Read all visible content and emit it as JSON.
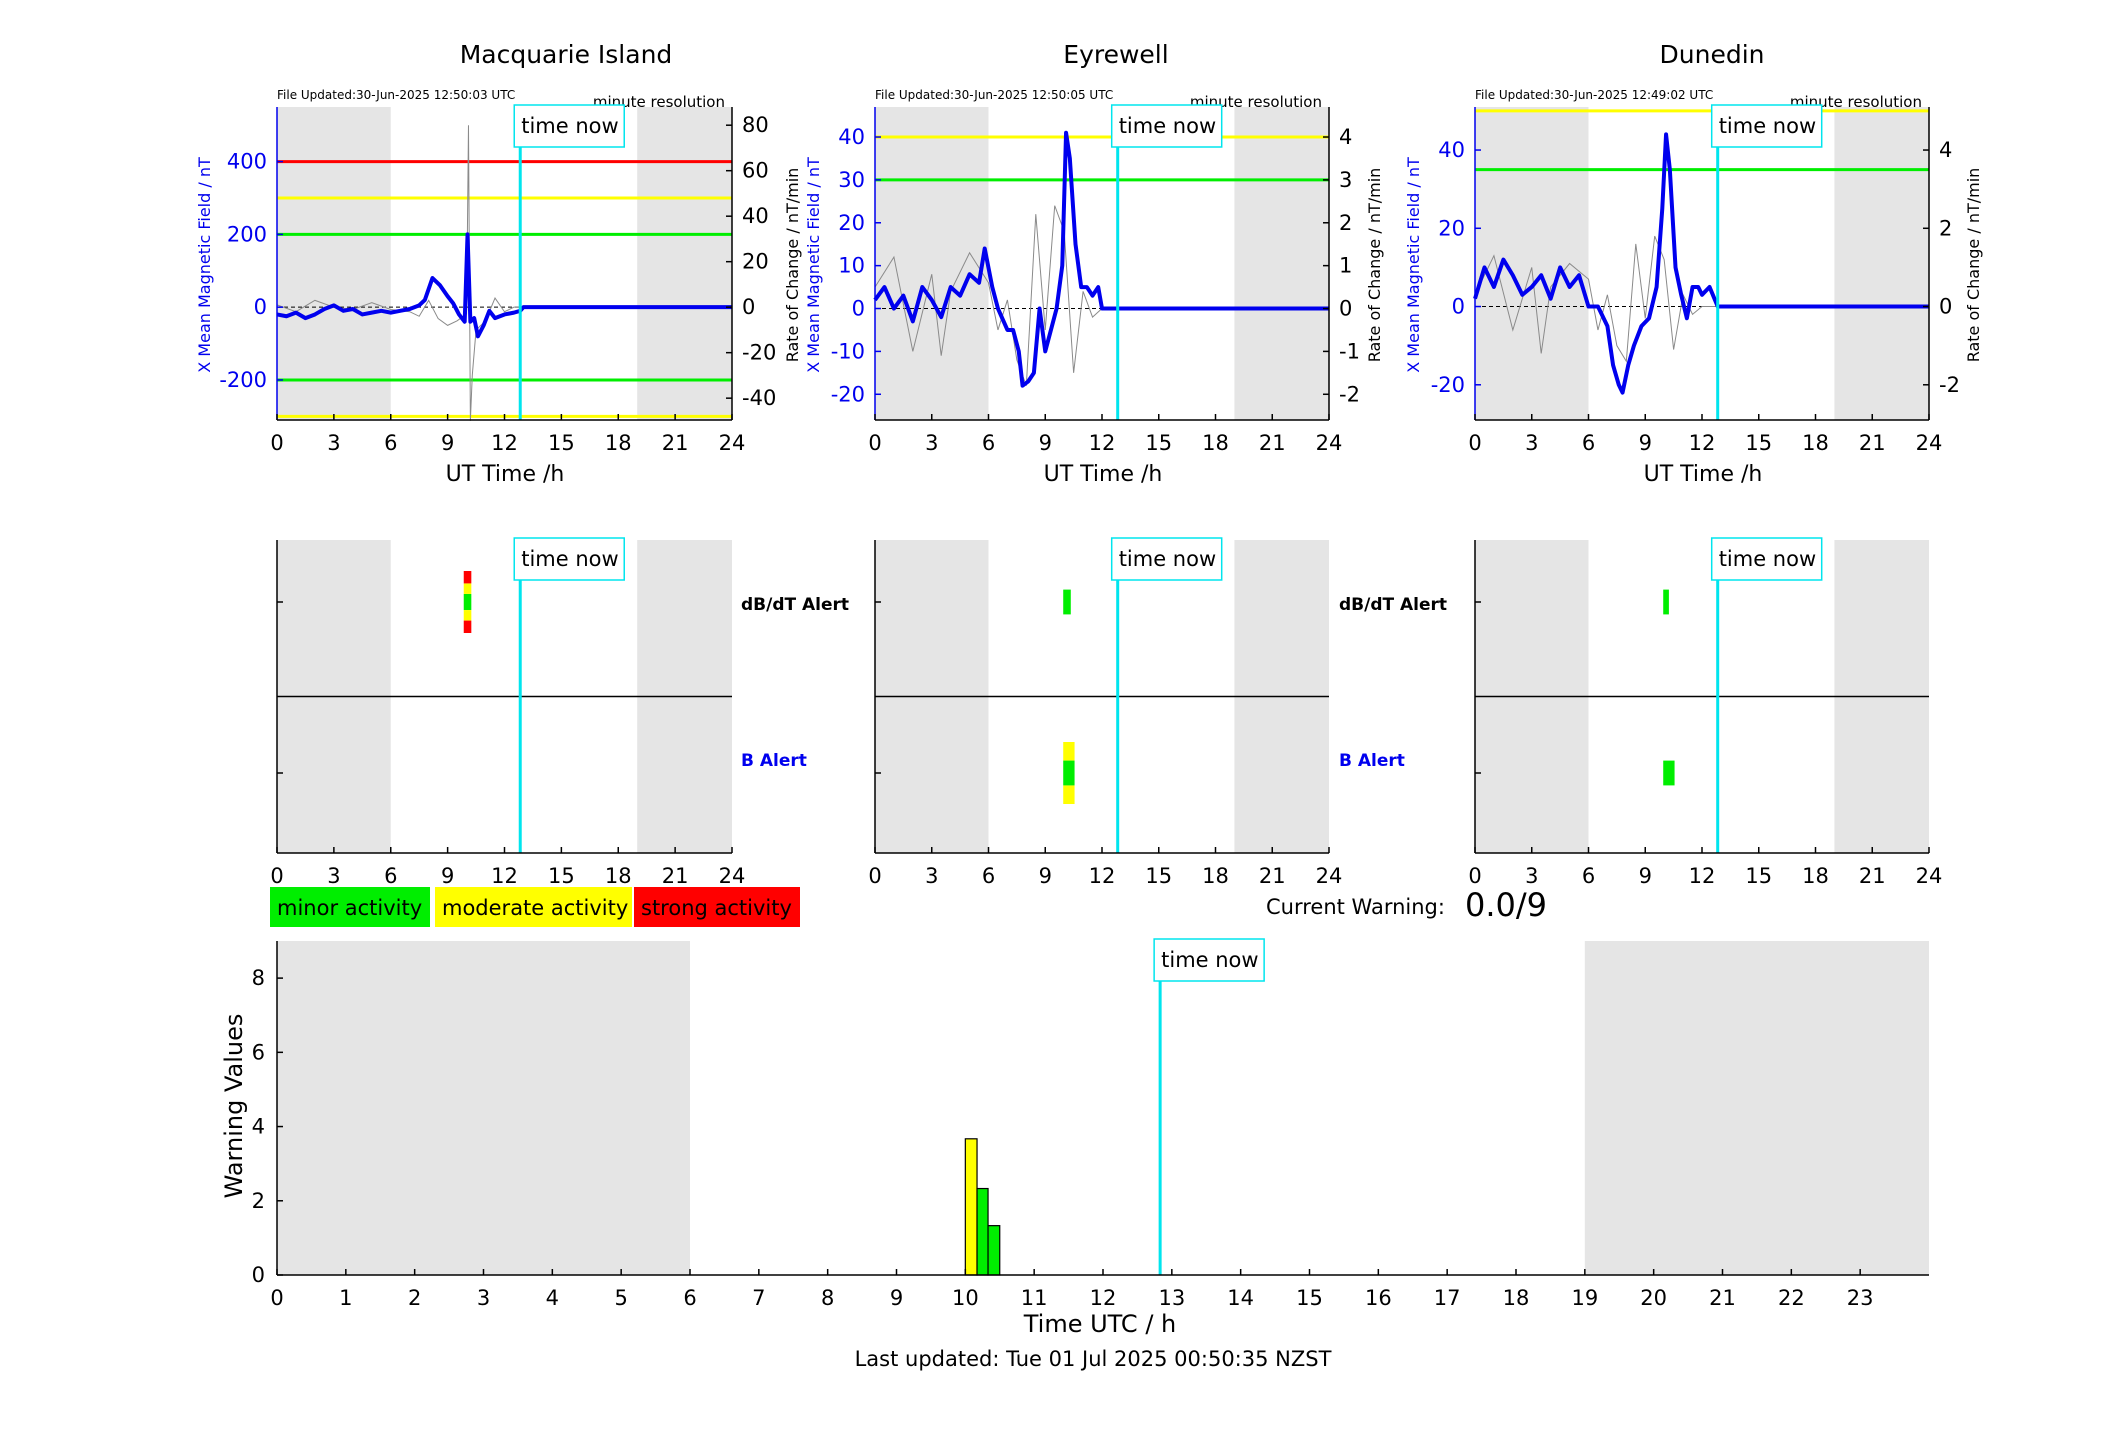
{
  "colors": {
    "blue": "#0000ee",
    "cyan": "#00e5ee",
    "red": "#ff0000",
    "yellow": "#ffff00",
    "green": "#00ee00",
    "night": "#e5e5e5",
    "trace_gray": "#8a8a8a"
  },
  "labels": {
    "time_now": "time now",
    "minute_res": "minute resolution",
    "ut_xlabel": "UT Time /h",
    "left_ylabel": "X Mean Magnetic Field / nT",
    "right_ylabel": "Rate of Change / nT/min",
    "dbdt_alert": "dB/dT Alert",
    "b_alert": "B Alert",
    "current_warning_label": "Current Warning:",
    "current_warning_value": "0.0/9",
    "warning_ylabel": "Warning Values",
    "warning_xlabel": "Time UTC / h",
    "last_updated": "Last updated: Tue 01 Jul 2025 00:50:35 NZST"
  },
  "legend": [
    {
      "label": "minor activity",
      "color": "#00ee00"
    },
    {
      "label": "moderate activity",
      "color": "#ffff00"
    },
    {
      "label": "strong activity",
      "color": "#ff0000"
    }
  ],
  "chart_data": [
    {
      "type": "line",
      "title": "Macquarie Island",
      "file_updated": "File Updated:30-Jun-2025 12:50:03 UTC",
      "x_ticks": [
        "0",
        "3",
        "6",
        "9",
        "12",
        "15",
        "18",
        "21",
        "24"
      ],
      "xlim": [
        0,
        24
      ],
      "ylim_left": [
        -310,
        550
      ],
      "yticks_left": [
        -200,
        0,
        200,
        400
      ],
      "ytick_labels_left": [
        "-200",
        "0",
        "200",
        "400"
      ],
      "ylim_right": [
        -49.6,
        88
      ],
      "yticks_right": [
        -40,
        -20,
        0,
        20,
        40,
        60,
        80
      ],
      "ytick_labels_right": [
        "-40",
        "-20",
        "0",
        "20",
        "40",
        "60",
        "80"
      ],
      "night": [
        [
          0,
          6
        ],
        [
          19,
          24
        ]
      ],
      "now_hour": 12.83,
      "thresholds": [
        {
          "value": 400,
          "color": "#ff0000"
        },
        {
          "value": 300,
          "color": "#ffff00"
        },
        {
          "value": 200,
          "color": "#00ee00"
        },
        {
          "value": -200,
          "color": "#00ee00"
        },
        {
          "value": -300,
          "color": "#ffff00"
        }
      ],
      "series": [
        {
          "kind": "field",
          "x": [
            0,
            0.5,
            1,
            1.5,
            2,
            2.5,
            3,
            3.5,
            4,
            4.5,
            5,
            5.5,
            6,
            6.5,
            7,
            7.5,
            7.8,
            8.2,
            8.6,
            9,
            9.3,
            9.6,
            9.9,
            10.05,
            10.2,
            10.4,
            10.6,
            10.9,
            11.2,
            11.5,
            12,
            12.5,
            12.83,
            13,
            24
          ],
          "y": [
            -20,
            -25,
            -15,
            -30,
            -20,
            -5,
            5,
            -10,
            -5,
            -20,
            -15,
            -10,
            -15,
            -10,
            -5,
            5,
            20,
            80,
            60,
            30,
            10,
            -20,
            -40,
            200,
            -40,
            -30,
            -80,
            -50,
            -10,
            -30,
            -20,
            -15,
            -10,
            0,
            0
          ]
        },
        {
          "kind": "rate",
          "x": [
            0,
            1,
            2,
            3,
            4,
            5,
            6,
            7,
            7.5,
            8,
            8.5,
            9,
            9.5,
            10,
            10.1,
            10.2,
            10.3,
            10.5,
            11,
            11.5,
            12,
            12.5,
            12.83
          ],
          "y": [
            1,
            -2,
            3,
            0,
            -1,
            2,
            -1,
            -2,
            -4,
            3,
            -5,
            -8,
            -6,
            -3,
            80,
            -50,
            -30,
            -10,
            -6,
            4,
            -2,
            0,
            0
          ]
        }
      ],
      "alerts": {
        "dbdt": [
          {
            "h0": 9.85,
            "h1": 10.25,
            "v0": 0.37,
            "v1": 0.63,
            "color": "#00ee00"
          },
          {
            "h0": 9.85,
            "h1": 10.25,
            "v0": 0.63,
            "v1": 0.8,
            "color": "#ffff00"
          },
          {
            "h0": 9.85,
            "h1": 10.25,
            "v0": 0.2,
            "v1": 0.37,
            "color": "#ffff00"
          },
          {
            "h0": 9.85,
            "h1": 10.25,
            "v0": 0.8,
            "v1": 1.0,
            "color": "#ff0000"
          },
          {
            "h0": 9.85,
            "h1": 10.25,
            "v0": 0.0,
            "v1": 0.2,
            "color": "#ff0000"
          }
        ],
        "b": []
      }
    },
    {
      "type": "line",
      "title": "Eyrewell",
      "file_updated": "File Updated:30-Jun-2025 12:50:05 UTC",
      "x_ticks": [
        "0",
        "3",
        "6",
        "9",
        "12",
        "15",
        "18",
        "21",
        "24"
      ],
      "xlim": [
        0,
        24
      ],
      "ylim_left": [
        -26,
        47
      ],
      "yticks_left": [
        -20,
        -10,
        0,
        10,
        20,
        30,
        40
      ],
      "ytick_labels_left": [
        "-20",
        "-10",
        "0",
        "10",
        "20",
        "30",
        "40"
      ],
      "ylim_right": [
        -2.6,
        4.7
      ],
      "yticks_right": [
        -2,
        -1,
        0,
        1,
        2,
        3,
        4
      ],
      "ytick_labels_right": [
        "-2",
        "-1",
        "0",
        "1",
        "2",
        "3",
        "4"
      ],
      "night": [
        [
          0,
          6
        ],
        [
          19,
          24
        ]
      ],
      "now_hour": 12.83,
      "thresholds": [
        {
          "value": 40,
          "color": "#ffff00"
        },
        {
          "value": 30,
          "color": "#00ee00"
        }
      ],
      "series": [
        {
          "kind": "field",
          "x": [
            0,
            0.5,
            1,
            1.5,
            2,
            2.5,
            3,
            3.5,
            4,
            4.5,
            5,
            5.5,
            5.8,
            6.2,
            6.5,
            7,
            7.3,
            7.6,
            7.8,
            8.1,
            8.4,
            8.7,
            9,
            9.3,
            9.6,
            9.9,
            10.1,
            10.3,
            10.6,
            10.9,
            11.2,
            11.5,
            11.8,
            12,
            12.3,
            12.83,
            13,
            24
          ],
          "y": [
            2,
            5,
            0,
            3,
            -3,
            5,
            2,
            -2,
            5,
            3,
            8,
            6,
            14,
            5,
            0,
            -5,
            -5,
            -10,
            -18,
            -17,
            -15,
            0,
            -10,
            -5,
            0,
            10,
            41,
            35,
            15,
            5,
            5,
            3,
            5,
            0,
            0,
            0,
            0,
            0
          ]
        },
        {
          "kind": "rate",
          "x": [
            0,
            1,
            2,
            3,
            3.5,
            4,
            5,
            6,
            6.5,
            7,
            7.5,
            8,
            8.5,
            9,
            9.5,
            10,
            10.5,
            11,
            11.5,
            12,
            12.83
          ],
          "y": [
            0.5,
            1.2,
            -1,
            0.8,
            -1.1,
            0.4,
            1.3,
            0.6,
            -0.5,
            0.2,
            -1.2,
            -1.8,
            2.2,
            -0.5,
            2.4,
            1.8,
            -1.5,
            0.4,
            -0.2,
            0,
            0
          ]
        }
      ],
      "alerts": {
        "dbdt": [
          {
            "h0": 9.95,
            "h1": 10.35,
            "v0": 0.3,
            "v1": 0.7,
            "color": "#00ee00"
          }
        ],
        "b": [
          {
            "h0": 9.95,
            "h1": 10.55,
            "v0": 0.7,
            "v1": 1.0,
            "color": "#ffff00"
          },
          {
            "h0": 9.95,
            "h1": 10.55,
            "v0": 0.0,
            "v1": 0.3,
            "color": "#ffff00"
          },
          {
            "h0": 9.95,
            "h1": 10.55,
            "v0": 0.3,
            "v1": 0.7,
            "color": "#00ee00"
          }
        ]
      }
    },
    {
      "type": "line",
      "title": "Dunedin",
      "file_updated": "File Updated:30-Jun-2025 12:49:02 UTC",
      "x_ticks": [
        "0",
        "3",
        "6",
        "9",
        "12",
        "15",
        "18",
        "21",
        "24"
      ],
      "xlim": [
        0,
        24
      ],
      "ylim_left": [
        -29,
        51
      ],
      "yticks_left": [
        -20,
        0,
        20,
        40
      ],
      "ytick_labels_left": [
        "-20",
        "0",
        "20",
        "40"
      ],
      "ylim_right": [
        -2.9,
        5.1
      ],
      "yticks_right": [
        -2,
        0,
        2,
        4
      ],
      "ytick_labels_right": [
        "-2",
        "0",
        "2",
        "4"
      ],
      "night": [
        [
          0,
          6
        ],
        [
          19,
          24
        ]
      ],
      "now_hour": 12.83,
      "thresholds": [
        {
          "value": 50,
          "color": "#ffff00"
        },
        {
          "value": 35,
          "color": "#00ee00"
        }
      ],
      "series": [
        {
          "kind": "field",
          "x": [
            0,
            0.5,
            1,
            1.5,
            2,
            2.5,
            3,
            3.5,
            4,
            4.5,
            5,
            5.5,
            6,
            6.5,
            7,
            7.3,
            7.6,
            7.8,
            8.1,
            8.4,
            8.8,
            9.2,
            9.6,
            9.9,
            10.1,
            10.3,
            10.6,
            10.9,
            11.2,
            11.5,
            11.8,
            12,
            12.4,
            12.83,
            13,
            24
          ],
          "y": [
            2,
            10,
            5,
            12,
            8,
            3,
            5,
            8,
            2,
            10,
            5,
            8,
            0,
            0,
            -5,
            -15,
            -20,
            -22,
            -15,
            -10,
            -5,
            -3,
            5,
            25,
            44,
            35,
            10,
            3,
            -3,
            5,
            5,
            3,
            5,
            0,
            0,
            0
          ]
        },
        {
          "kind": "rate",
          "x": [
            0,
            1,
            2,
            3,
            3.5,
            4,
            5,
            6,
            6.5,
            7,
            7.5,
            8,
            8.5,
            9,
            9.5,
            10,
            10.5,
            11,
            11.5,
            12,
            12.83
          ],
          "y": [
            0.3,
            1.3,
            -0.6,
            1.0,
            -1.2,
            0.5,
            1.1,
            0.7,
            -0.6,
            0.3,
            -1.0,
            -1.4,
            1.6,
            -0.3,
            1.8,
            1.2,
            -1.1,
            0.3,
            -0.2,
            0,
            0
          ]
        }
      ],
      "alerts": {
        "dbdt": [
          {
            "h0": 9.95,
            "h1": 10.25,
            "v0": 0.3,
            "v1": 0.7,
            "color": "#00ee00"
          }
        ],
        "b": [
          {
            "h0": 9.95,
            "h1": 10.55,
            "v0": 0.3,
            "v1": 0.7,
            "color": "#00ee00"
          }
        ]
      }
    },
    {
      "type": "bar",
      "title": "",
      "xlabel": "Time UTC / h",
      "ylabel": "Warning Values",
      "xlim": [
        0,
        24
      ],
      "x_ticks": [
        "0",
        "1",
        "2",
        "3",
        "4",
        "5",
        "6",
        "7",
        "8",
        "9",
        "10",
        "11",
        "12",
        "13",
        "14",
        "15",
        "16",
        "17",
        "18",
        "19",
        "20",
        "21",
        "22",
        "23"
      ],
      "ylim": [
        0,
        9
      ],
      "y_ticks": [
        "0",
        "2",
        "4",
        "6",
        "8"
      ],
      "night": [
        [
          0,
          6
        ],
        [
          19,
          24
        ]
      ],
      "now_hour": 12.83,
      "bars": [
        {
          "h0": 10.0,
          "h1": 10.17,
          "value": 3.67,
          "color": "#ffff00"
        },
        {
          "h0": 10.17,
          "h1": 10.33,
          "value": 2.33,
          "color": "#00ee00"
        },
        {
          "h0": 10.33,
          "h1": 10.5,
          "value": 1.33,
          "color": "#00ee00"
        }
      ]
    }
  ]
}
